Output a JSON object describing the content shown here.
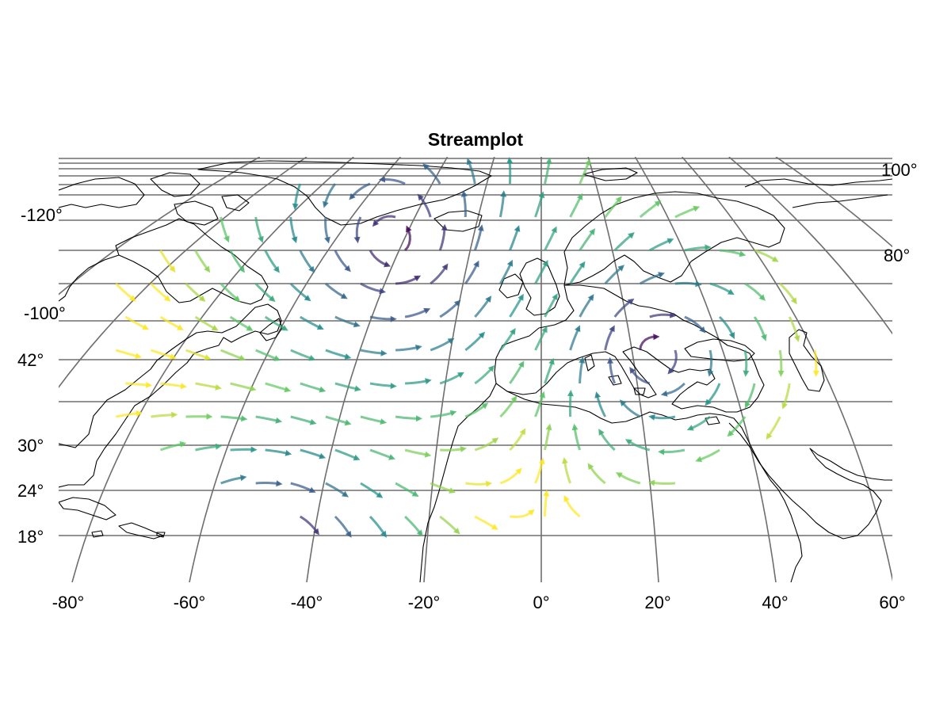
{
  "title": "Streamplot",
  "x_ticks": [
    "-80°",
    "-60°",
    "-40°",
    "-20°",
    "0°",
    "20°",
    "40°",
    "60°"
  ],
  "left_labels": [
    "-120°",
    "-100°",
    "42°",
    "30°",
    "24°",
    "18°"
  ],
  "right_labels": [
    "100°",
    "80°"
  ],
  "colormap": [
    "#440154",
    "#3b528b",
    "#21918c",
    "#5ec962",
    "#fde725"
  ],
  "chart_data": {
    "type": "streamplot",
    "title": "Streamplot",
    "xlabel": "",
    "ylabel": "",
    "xlim": [
      -80,
      60
    ],
    "grid": true,
    "x_ticks": [
      -80,
      -60,
      -40,
      -20,
      0,
      20,
      40,
      60
    ],
    "lat_ticks": [
      18,
      24,
      30,
      42
    ],
    "colorscale": "viridis",
    "vortices": [
      {
        "lon": -27,
        "lat": 62,
        "rotation": "counterclockwise"
      },
      {
        "lon": 17,
        "lat": 40,
        "rotation": "clockwise"
      },
      {
        "lon": -47,
        "lat": 15,
        "rotation": "clockwise"
      }
    ]
  }
}
